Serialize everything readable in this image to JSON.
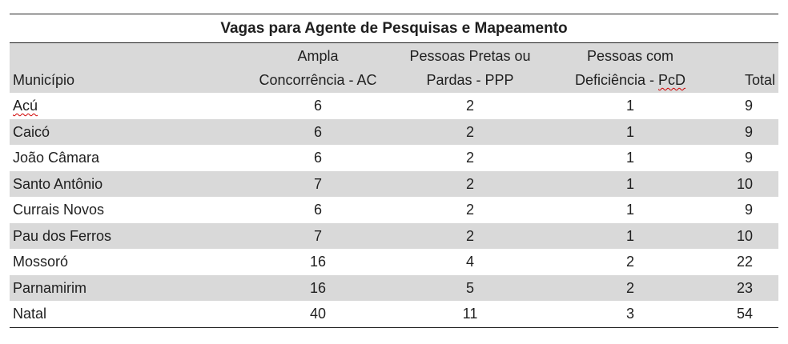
{
  "table": {
    "title": "Vagas para Agente de Pesquisas e Mapeamento",
    "headers": {
      "municipio": "Município",
      "ac_line1": "Ampla",
      "ac_line2": "Concorrência - AC",
      "ppp_line1": "Pessoas Pretas ou",
      "ppp_line2": "Pardas - PPP",
      "pcd_line1": "Pessoas com",
      "pcd_line2_a": "Deficiência - ",
      "pcd_line2_b": "PcD",
      "total": "Total"
    },
    "rows": [
      {
        "municipio": "Acú",
        "ac": "6",
        "ppp": "2",
        "pcd": "1",
        "total": "9"
      },
      {
        "municipio": "Caicó",
        "ac": "6",
        "ppp": "2",
        "pcd": "1",
        "total": "9"
      },
      {
        "municipio": "João Câmara",
        "ac": "6",
        "ppp": "2",
        "pcd": "1",
        "total": "9"
      },
      {
        "municipio": "Santo Antônio",
        "ac": "7",
        "ppp": "2",
        "pcd": "1",
        "total": "10"
      },
      {
        "municipio": "Currais Novos",
        "ac": "6",
        "ppp": "2",
        "pcd": "1",
        "total": "9"
      },
      {
        "municipio": "Pau dos Ferros",
        "ac": "7",
        "ppp": "2",
        "pcd": "1",
        "total": "10"
      },
      {
        "municipio": "Mossoró",
        "ac": "16",
        "ppp": "4",
        "pcd": "2",
        "total": "22"
      },
      {
        "municipio": "Parnamirim",
        "ac": "16",
        "ppp": "5",
        "pcd": "2",
        "total": "23"
      },
      {
        "municipio": "Natal",
        "ac": "40",
        "ppp": "11",
        "pcd": "3",
        "total": "54"
      }
    ]
  }
}
